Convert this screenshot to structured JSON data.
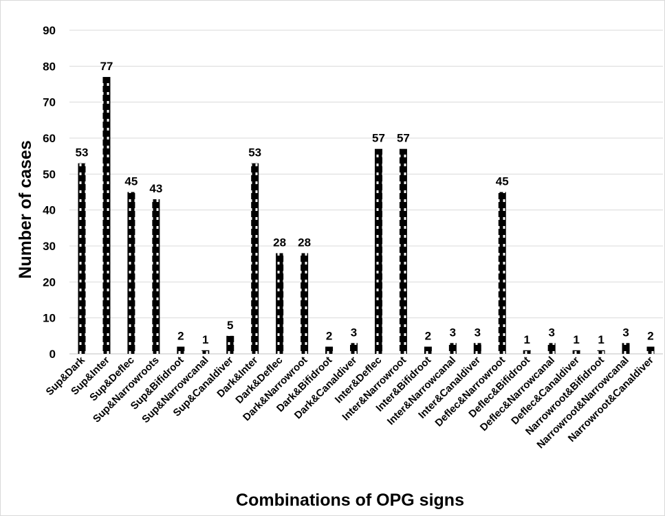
{
  "chart_data": {
    "type": "bar",
    "title": "",
    "xlabel": "Combinations of OPG signs",
    "ylabel": "Number of cases",
    "ylim": [
      0,
      90
    ],
    "ytick_step": 10,
    "grid": true,
    "legend": "none",
    "bar_color": "#000000",
    "bar_pattern_color": "#ffffff",
    "categories": [
      "Sup&Dark",
      "Sup&Inter",
      "Sup&Deflec",
      "Sup&Narrowroots",
      "Sup&Bifidroot",
      "Sup&Narrowcanal",
      "Sup&Canaldiver",
      "Dark&Inter",
      "Dark&Deflec",
      "Dark&Narrowroot",
      "Dark&Bifidroot",
      "Dark&Canaldiver",
      "Inter&Deflec",
      "Inter&Narrowroot",
      "Inter&Bifidroot",
      "Inter&Narrowcanal",
      "Inter&Canaldiver",
      "Deflec&Narrowroot",
      "Deflec&Bifidroot",
      "Deflec&Narrowcanal",
      "Deflec&Canaldiver",
      "Narrowroot&Bifidroot",
      "Narrowroot&Narrowcanal",
      "Narrowroot&Canaldiver"
    ],
    "values": [
      53,
      77,
      45,
      43,
      2,
      1,
      5,
      53,
      28,
      28,
      2,
      3,
      57,
      57,
      2,
      3,
      3,
      45,
      1,
      3,
      1,
      1,
      3,
      2
    ]
  }
}
